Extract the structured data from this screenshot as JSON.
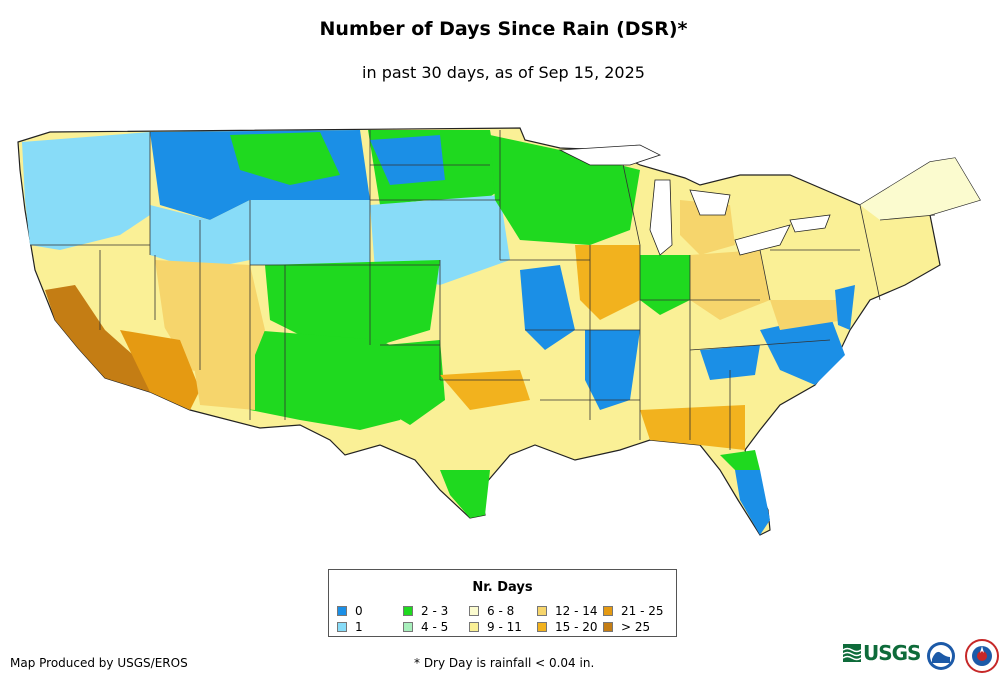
{
  "header": {
    "title": "Number of Days Since Rain (DSR)*",
    "subtitle": "in past 30 days, as of Sep 15, 2025"
  },
  "legend": {
    "title": "Nr. Days",
    "items": [
      {
        "label": "0",
        "color": "#1b8fe6"
      },
      {
        "label": "1",
        "color": "#88dcf8"
      },
      {
        "label": "2 - 3",
        "color": "#1fd91f"
      },
      {
        "label": "4 - 5",
        "color": "#a8efbc"
      },
      {
        "label": "6 - 8",
        "color": "#fbfbcf"
      },
      {
        "label": "9 - 11",
        "color": "#faf096"
      },
      {
        "label": "12 - 14",
        "color": "#f6d56c"
      },
      {
        "label": "15 - 20",
        "color": "#f2b21e"
      },
      {
        "label": "21 - 25",
        "color": "#e59a12"
      },
      {
        "label": "> 25",
        "color": "#c47d14"
      }
    ]
  },
  "footer": {
    "credit": "Map Produced by USGS/EROS",
    "footnote": "* Dry Day is rainfall < 0.04 in.",
    "logos": [
      "usgs-logo",
      "noaa-logo",
      "nws-logo"
    ],
    "usgs_text": "USGS"
  }
}
